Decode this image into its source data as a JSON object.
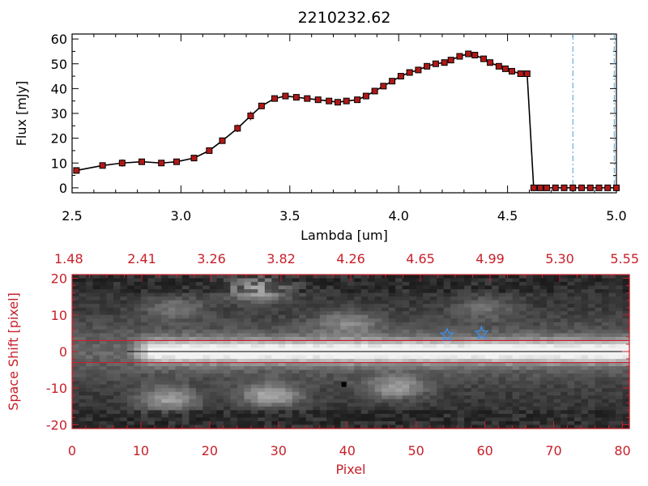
{
  "title": "2210232.62",
  "colors": {
    "background": "#ffffff",
    "axis_black": "#000000",
    "accent_red": "#c8202a",
    "marker_red": "#b01818",
    "dashed_blue": "#4f9fd0",
    "star_blue": "#3a8ee6",
    "image_min": "#101010",
    "image_max": "#f2f2f2"
  },
  "chart_data": [
    {
      "type": "line",
      "xlabel": "Lambda [um]",
      "ylabel": "Flux [mJy]",
      "xlim": [
        2.5,
        5.0
      ],
      "ylim": [
        -2,
        62
      ],
      "x_ticks": [
        "2.5",
        "3.0",
        "3.5",
        "4.0",
        "4.5",
        "5.0"
      ],
      "y_ticks": [
        "0",
        "10",
        "20",
        "30",
        "40",
        "50",
        "60"
      ],
      "markers": "red filled squares with black outline and vertical error bars",
      "x": [
        2.52,
        2.64,
        2.73,
        2.82,
        2.91,
        2.98,
        3.06,
        3.13,
        3.19,
        3.26,
        3.32,
        3.37,
        3.43,
        3.48,
        3.53,
        3.58,
        3.63,
        3.68,
        3.72,
        3.76,
        3.81,
        3.85,
        3.89,
        3.93,
        3.97,
        4.01,
        4.05,
        4.09,
        4.13,
        4.17,
        4.21,
        4.24,
        4.28,
        4.32,
        4.35,
        4.39,
        4.42,
        4.46,
        4.49,
        4.52,
        4.56,
        4.59,
        4.62,
        4.65,
        4.68,
        4.72,
        4.76,
        4.8,
        4.84,
        4.88,
        4.92,
        4.96,
        5.0
      ],
      "y": [
        7,
        9,
        10,
        10.5,
        10,
        10.5,
        12,
        15,
        19,
        24,
        29,
        33,
        36,
        37,
        36.5,
        36,
        35.5,
        35,
        34.5,
        35,
        35.5,
        37,
        39,
        41,
        43,
        45,
        46.5,
        47.5,
        49,
        50,
        50.5,
        51.5,
        53,
        54,
        53.5,
        52,
        50.5,
        49,
        48,
        47,
        46,
        46,
        0,
        0,
        0,
        0,
        0,
        0,
        0,
        0,
        0,
        0,
        0
      ],
      "yerr": [
        1.2,
        1,
        1.5,
        1.2,
        1,
        1,
        1,
        1,
        1.2,
        1.5,
        1.8,
        1.2,
        1,
        1,
        1,
        1,
        1,
        1,
        1,
        1,
        1,
        1,
        1,
        1,
        1,
        1,
        1,
        1,
        1,
        1,
        1,
        1,
        1,
        1,
        1,
        1,
        1,
        1,
        1,
        1,
        1,
        1,
        0,
        0,
        0,
        0,
        0,
        0,
        0,
        0,
        0,
        0,
        0
      ],
      "vertical_dashed_lines_x": [
        4.8,
        4.99
      ],
      "horizontal_dashed_line_y": 0
    },
    {
      "type": "heatmap",
      "xlabel": "Pixel",
      "ylabel": "Space Shift [pixel]",
      "xlim": [
        0,
        81
      ],
      "ylim": [
        -21,
        21
      ],
      "x_ticks": [
        "0",
        "10",
        "20",
        "30",
        "40",
        "50",
        "60",
        "70",
        "80"
      ],
      "y_ticks": [
        "-20",
        "-10",
        "0",
        "10",
        "20"
      ],
      "top_axis_labels": [
        "1.48",
        "2.41",
        "3.26",
        "3.82",
        "4.26",
        "4.65",
        "4.99",
        "5.30",
        "5.55"
      ],
      "colormap": "grayscale",
      "spectral_trace_center_y": 0,
      "aperture_lines_y": [
        3,
        -3
      ],
      "trace_segment_x": [
        8,
        80
      ],
      "stars": [
        {
          "x": 54.5,
          "y": 4.5
        },
        {
          "x": 59.5,
          "y": 5
        }
      ],
      "dark_pixel": {
        "x": 39.5,
        "y": -9
      },
      "bright_blobs": [
        {
          "x": 27,
          "y": 17,
          "value": 0.55
        },
        {
          "x": 14,
          "y": -13,
          "value": 0.45
        },
        {
          "x": 29,
          "y": -12,
          "value": 0.5
        },
        {
          "x": 47,
          "y": -10,
          "value": 0.4
        },
        {
          "x": 40,
          "y": 8,
          "value": 0.28
        },
        {
          "x": 15,
          "y": 12,
          "value": 0.25
        },
        {
          "x": 60,
          "y": 12,
          "value": 0.22
        }
      ]
    }
  ]
}
